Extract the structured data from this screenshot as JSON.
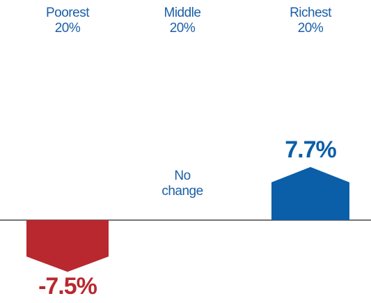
{
  "chart_data": {
    "type": "bar",
    "categories": [
      "Poorest 20%",
      "Middle 20%",
      "Richest 20%"
    ],
    "values": [
      -7.5,
      0,
      7.7
    ],
    "value_labels": [
      "-7.5%",
      "No change",
      "7.7%"
    ],
    "colors": [
      "#b8282e",
      "#0b5ea8",
      "#0b5ea8"
    ]
  }
}
